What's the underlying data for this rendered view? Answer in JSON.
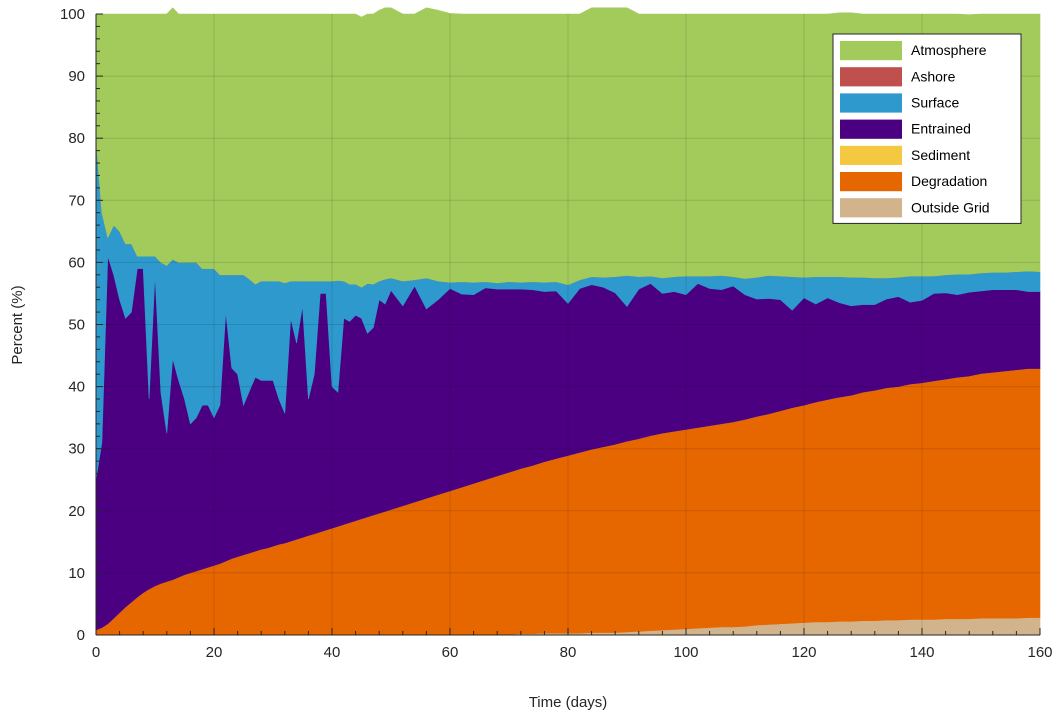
{
  "chart_data": {
    "type": "area",
    "stacked": true,
    "title": "",
    "xlabel": "Time (days)",
    "ylabel": "Percent (%)",
    "xlim": [
      0,
      160
    ],
    "ylim": [
      0,
      100
    ],
    "xticks": [
      0,
      20,
      40,
      60,
      80,
      100,
      120,
      140,
      160
    ],
    "yticks": [
      0,
      10,
      20,
      30,
      40,
      50,
      60,
      70,
      80,
      90,
      100
    ],
    "grid": true,
    "legend_position": "top-right",
    "x": [
      0,
      1,
      2,
      3,
      4,
      5,
      6,
      7,
      8,
      9,
      10,
      11,
      12,
      13,
      14,
      15,
      16,
      17,
      18,
      19,
      20,
      21,
      22,
      23,
      24,
      25,
      26,
      27,
      28,
      29,
      30,
      31,
      32,
      33,
      34,
      35,
      36,
      37,
      38,
      39,
      40,
      41,
      42,
      43,
      44,
      45,
      46,
      47,
      48,
      49,
      50,
      52,
      54,
      56,
      58,
      60,
      62,
      64,
      66,
      68,
      70,
      72,
      74,
      76,
      78,
      80,
      82,
      84,
      86,
      88,
      90,
      92,
      94,
      96,
      98,
      100,
      102,
      104,
      106,
      108,
      110,
      112,
      114,
      116,
      118,
      120,
      122,
      124,
      126,
      128,
      130,
      132,
      134,
      136,
      138,
      140,
      142,
      144,
      146,
      148,
      150,
      152,
      154,
      156,
      158,
      160
    ],
    "series": [
      {
        "name": "Outside Grid",
        "color": "#D2B48C",
        "values": [
          0,
          0,
          0,
          0,
          0,
          0,
          0,
          0,
          0,
          0,
          0,
          0,
          0,
          0,
          0,
          0,
          0,
          0,
          0,
          0,
          0,
          0,
          0,
          0,
          0,
          0,
          0,
          0,
          0,
          0,
          0,
          0,
          0,
          0,
          0,
          0,
          0,
          0,
          0,
          0,
          0,
          0,
          0,
          0,
          0,
          0,
          0,
          0,
          0,
          0,
          0,
          0,
          0,
          0,
          0,
          0,
          0,
          0,
          0,
          0.1,
          0.1,
          0.2,
          0.2,
          0.3,
          0.3,
          0.3,
          0.3,
          0.4,
          0.4,
          0.4,
          0.5,
          0.6,
          0.7,
          0.8,
          0.9,
          1.0,
          1.1,
          1.2,
          1.3,
          1.3,
          1.4,
          1.6,
          1.7,
          1.8,
          1.9,
          2.0,
          2.1,
          2.1,
          2.2,
          2.2,
          2.3,
          2.3,
          2.4,
          2.4,
          2.5,
          2.5,
          2.5,
          2.6,
          2.6,
          2.6,
          2.7,
          2.7,
          2.7,
          2.7,
          2.8,
          2.8
        ]
      },
      {
        "name": "Degradation",
        "color": "#E66700",
        "values": [
          0.8,
          1.2,
          1.8,
          2.7,
          3.6,
          4.5,
          5.3,
          6.1,
          6.8,
          7.4,
          7.9,
          8.3,
          8.6,
          8.9,
          9.3,
          9.7,
          10.0,
          10.3,
          10.6,
          10.9,
          11.2,
          11.5,
          11.9,
          12.3,
          12.6,
          12.9,
          13.2,
          13.5,
          13.8,
          14.0,
          14.3,
          14.6,
          14.8,
          15.1,
          15.4,
          15.7,
          16.0,
          16.3,
          16.6,
          16.9,
          17.2,
          17.5,
          17.8,
          18.1,
          18.4,
          18.7,
          19.0,
          19.3,
          19.6,
          19.9,
          20.2,
          20.8,
          21.4,
          22.0,
          22.6,
          23.2,
          23.8,
          24.4,
          25.0,
          25.5,
          26.1,
          26.6,
          27.1,
          27.6,
          28.1,
          28.6,
          29.1,
          29.5,
          29.9,
          30.3,
          30.7,
          31.0,
          31.4,
          31.7,
          31.9,
          32.1,
          32.3,
          32.5,
          32.7,
          33.0,
          33.3,
          33.6,
          33.9,
          34.3,
          34.7,
          35.0,
          35.4,
          35.8,
          36.1,
          36.4,
          36.8,
          37.1,
          37.4,
          37.6,
          37.9,
          38.1,
          38.4,
          38.6,
          38.9,
          39.1,
          39.4,
          39.6,
          39.8,
          40.0,
          40.1,
          40.1
        ]
      },
      {
        "name": "Sediment",
        "color": "#F5C842",
        "values": [
          0,
          0,
          0,
          0,
          0,
          0,
          0,
          0,
          0,
          0,
          0,
          0,
          0,
          0,
          0,
          0,
          0,
          0,
          0,
          0,
          0,
          0,
          0,
          0,
          0,
          0,
          0,
          0,
          0,
          0,
          0,
          0,
          0,
          0,
          0,
          0,
          0,
          0,
          0,
          0,
          0,
          0,
          0,
          0,
          0,
          0,
          0,
          0,
          0,
          0,
          0,
          0,
          0,
          0,
          0,
          0,
          0,
          0,
          0,
          0,
          0,
          0,
          0,
          0,
          0,
          0,
          0,
          0,
          0,
          0,
          0,
          0,
          0,
          0,
          0,
          0,
          0,
          0,
          0,
          0,
          0,
          0,
          0,
          0,
          0,
          0,
          0,
          0,
          0,
          0,
          0,
          0,
          0,
          0,
          0,
          0,
          0,
          0,
          0,
          0,
          0,
          0,
          0,
          0,
          0,
          0
        ]
      },
      {
        "name": "Entrained",
        "color": "#4B0082",
        "values": [
          24.2,
          29.8,
          59.2,
          55.3,
          50.4,
          46.5,
          46.7,
          52.9,
          52.2,
          30.6,
          50.1,
          30.7,
          23.9,
          35.6,
          31.7,
          28.3,
          24.0,
          24.7,
          26.4,
          26.1,
          23.8,
          25.5,
          40.1,
          30.7,
          29.4,
          24.1,
          26.1,
          28.0,
          27.2,
          27.0,
          26.7,
          23.4,
          20.9,
          35.9,
          31.6,
          37.3,
          22.0,
          25.7,
          38.4,
          38.1,
          22.8,
          21.6,
          33.2,
          32.4,
          33.1,
          32.3,
          29.6,
          30.2,
          34.4,
          33.4,
          35.3,
          32.2,
          34.8,
          30.5,
          31.4,
          32.6,
          31.1,
          30.4,
          30.9,
          30.1,
          29.5,
          28.9,
          28.3,
          27.4,
          27.0,
          24.5,
          26.4,
          26.5,
          25.7,
          24.4,
          21.7,
          24.1,
          24.5,
          22.5,
          22.5,
          21.7,
          23.2,
          22.1,
          21.6,
          21.9,
          20.1,
          18.9,
          18.6,
          17.9,
          15.7,
          17.3,
          15.8,
          16.4,
          15.2,
          14.4,
          14.1,
          13.8,
          14.3,
          14.5,
          13.2,
          13.3,
          14.1,
          13.9,
          13.3,
          13.5,
          13.3,
          13.3,
          13.1,
          12.9,
          12.4,
          12.4
        ]
      },
      {
        "name": "Surface",
        "color": "#2E99CC",
        "values": [
          55.0,
          37.0,
          3.0,
          8.0,
          11.0,
          12.0,
          11.0,
          2.0,
          2.0,
          23.0,
          3.0,
          21.0,
          27.0,
          16.0,
          19.0,
          22.0,
          26.0,
          25.0,
          22.0,
          22.0,
          24.0,
          21.0,
          6.0,
          15.0,
          16.0,
          21.0,
          18.0,
          15.0,
          16.0,
          16.0,
          16.0,
          19.0,
          21.0,
          6.0,
          10.0,
          4.0,
          19.0,
          15.0,
          2.0,
          2.0,
          17.0,
          18.0,
          6.0,
          6.0,
          5.0,
          5.0,
          8.0,
          7.0,
          3.0,
          4.0,
          2.0,
          4.0,
          1.0,
          5.0,
          3.0,
          1.0,
          2.0,
          2.0,
          1.0,
          1.0,
          1.2,
          1.1,
          1.3,
          1.5,
          1.5,
          3.0,
          1.4,
          1.3,
          1.6,
          2.6,
          5.0,
          2.0,
          1.2,
          2.5,
          2.4,
          3.0,
          1.2,
          2.0,
          2.3,
          1.5,
          2.6,
          3.5,
          3.7,
          3.8,
          5.4,
          3.3,
          4.4,
          3.4,
          4.2,
          4.6,
          4.4,
          4.3,
          3.4,
          3.1,
          4.2,
          3.9,
          2.8,
          2.9,
          3.3,
          2.9,
          2.9,
          2.8,
          2.8,
          2.9,
          3.3,
          3.2
        ]
      },
      {
        "name": "Ashore",
        "color": "#C0504D",
        "values": [
          0,
          0,
          0,
          0,
          0,
          0,
          0,
          0,
          0,
          0,
          0,
          0,
          0,
          0,
          0,
          0,
          0,
          0,
          0,
          0,
          0,
          0,
          0,
          0,
          0,
          0,
          0,
          0,
          0,
          0,
          0,
          0,
          0,
          0,
          0,
          0,
          0,
          0,
          0,
          0,
          0,
          0,
          0,
          0,
          0,
          0,
          0,
          0,
          0,
          0,
          0,
          0,
          0,
          0,
          0,
          0,
          0,
          0,
          0,
          0,
          0,
          0,
          0,
          0,
          0,
          0,
          0,
          0,
          0,
          0,
          0,
          0,
          0,
          0,
          0,
          0,
          0,
          0,
          0,
          0,
          0,
          0,
          0,
          0,
          0,
          0,
          0,
          0,
          0,
          0,
          0,
          0,
          0,
          0,
          0,
          0,
          0,
          0,
          0,
          0,
          0,
          0,
          0,
          0,
          0,
          0
        ]
      },
      {
        "name": "Atmosphere",
        "color": "#A2CB5C",
        "values": [
          20.0,
          32.0,
          36.0,
          34.0,
          35.0,
          37.0,
          37.0,
          39.0,
          39.0,
          39.0,
          39.0,
          40.0,
          40.5,
          40.5,
          40.0,
          40.0,
          40.0,
          40.0,
          41.0,
          41.0,
          41.0,
          42.0,
          42.0,
          42.0,
          42.0,
          42.0,
          42.7,
          43.5,
          43.0,
          43.0,
          43.0,
          43.0,
          43.3,
          43.0,
          43.0,
          43.0,
          43.0,
          43.0,
          43.0,
          43.0,
          43.0,
          42.9,
          43.0,
          43.5,
          43.5,
          43.5,
          43.4,
          43.5,
          43.6,
          43.7,
          43.5,
          43.0,
          42.8,
          43.5,
          43.6,
          43.3,
          43.1,
          43.2,
          43.1,
          43.3,
          43.1,
          43.2,
          43.1,
          43.2,
          43.1,
          43.6,
          42.8,
          43.3,
          43.4,
          43.3,
          43.1,
          42.3,
          42.2,
          42.5,
          42.3,
          42.2,
          42.2,
          42.2,
          42.1,
          42.3,
          42.6,
          42.4,
          42.1,
          42.2,
          42.3,
          42.4,
          42.3,
          42.3,
          42.5,
          42.6,
          42.4,
          42.5,
          42.5,
          42.4,
          42.2,
          42.2,
          42.2,
          42.0,
          41.9,
          41.8,
          41.7,
          41.6,
          41.6,
          41.5,
          41.4,
          41.5
        ]
      }
    ],
    "legend_order": [
      "Atmosphere",
      "Ashore",
      "Surface",
      "Entrained",
      "Sediment",
      "Degradation",
      "Outside Grid"
    ]
  }
}
